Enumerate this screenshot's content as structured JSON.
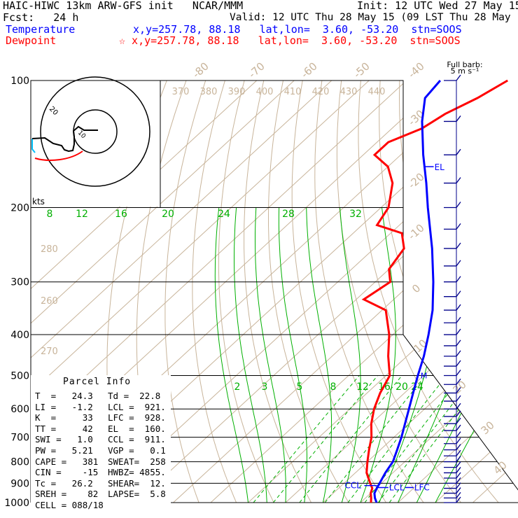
{
  "header": {
    "line1_left": "HAIC-HIWC 13km ARW-GFS init   NCAR/MMM",
    "line1_right": "Init: 12 UTC Wed 27 May 15",
    "line2_left": "Fcst:   24 h",
    "line2_right": "Valid: 12 UTC Thu 28 May 15 (09 LST Thu 28 May 15)",
    "temp_label": "Temperature",
    "temp_info": "x,y=257.78, 88.18   lat,lon=  3.60, -53.20  stn=SOOS",
    "dew_label": "Dewpoint",
    "dew_info": "☆ x,y=257.78, 88.18   lat,lon=  3.60, -53.20  stn=SOOS"
  },
  "colors": {
    "temperature": "#0000ff",
    "dewpoint": "#ff0000",
    "isotherm": "#c8b49a",
    "mixing_ratio": "#00b000",
    "barb": "#00008b",
    "hodo_low": "#00c0ff"
  },
  "chart_data": {
    "type": "line",
    "title": "",
    "pressure_labels": [
      "100",
      "200",
      "300",
      "400",
      "500",
      "600",
      "700",
      "800",
      "900",
      "1000"
    ],
    "isotherm_labels": [
      "-80",
      "-70",
      "-60",
      "-50",
      "-40",
      "-30",
      "-20",
      "-10",
      "0",
      "10",
      "20",
      "30",
      "40"
    ],
    "theta_labels": [
      "370",
      "380",
      "390",
      "400",
      "410",
      "420",
      "430",
      "440"
    ],
    "theta_left_labels": [
      "280",
      "260",
      "270"
    ],
    "mixing_upper_labels": [
      "8",
      "12",
      "16",
      "20",
      "24",
      "28",
      "32"
    ],
    "mixing_lower_labels": [
      "2",
      "3",
      "5",
      "8",
      "12",
      "16",
      "20",
      "24"
    ],
    "series": [
      {
        "name": "Temperature",
        "points": [
          [
            1000,
            24.3
          ],
          [
            975,
            22.5
          ],
          [
            950,
            21.0
          ],
          [
            925,
            20.2
          ],
          [
            900,
            19.5
          ],
          [
            850,
            18.0
          ],
          [
            800,
            16.8
          ],
          [
            750,
            14.5
          ],
          [
            700,
            12.0
          ],
          [
            650,
            9.0
          ],
          [
            600,
            5.8
          ],
          [
            550,
            2.3
          ],
          [
            500,
            -1.5
          ],
          [
            450,
            -5.5
          ],
          [
            400,
            -10.5
          ],
          [
            350,
            -16.5
          ],
          [
            300,
            -24.5
          ],
          [
            250,
            -34.5
          ],
          [
            200,
            -47.5
          ],
          [
            175,
            -55.0
          ],
          [
            150,
            -64.0
          ],
          [
            125,
            -74.0
          ],
          [
            110,
            -80.0
          ],
          [
            100,
            -81.0
          ]
        ]
      },
      {
        "name": "Dewpoint",
        "points": [
          [
            1000,
            22.8
          ],
          [
            975,
            21.5
          ],
          [
            950,
            20.0
          ],
          [
            925,
            19.0
          ],
          [
            900,
            17.0
          ],
          [
            850,
            13.0
          ],
          [
            800,
            10.0
          ],
          [
            750,
            7.0
          ],
          [
            700,
            4.0
          ],
          [
            650,
            0.0
          ],
          [
            600,
            -3.5
          ],
          [
            550,
            -6.5
          ],
          [
            500,
            -9.0
          ],
          [
            450,
            -15.0
          ],
          [
            400,
            -21.0
          ],
          [
            350,
            -29.0
          ],
          [
            330,
            -38.0
          ],
          [
            300,
            -36.0
          ],
          [
            280,
            -40.0
          ],
          [
            250,
            -42.0
          ],
          [
            230,
            -47.0
          ],
          [
            220,
            -56.0
          ],
          [
            200,
            -58.0
          ],
          [
            175,
            -64.0
          ],
          [
            160,
            -70.0
          ],
          [
            150,
            -77.0
          ],
          [
            140,
            -77.0
          ],
          [
            130,
            -72.0
          ],
          [
            120,
            -70.0
          ],
          [
            110,
            -66.0
          ],
          [
            100,
            -63.0
          ]
        ]
      }
    ],
    "levels": [
      {
        "label": "EL",
        "pressure": 160
      },
      {
        "label": "M",
        "pressure": 500
      },
      {
        "label": "CCL",
        "pressure": 911
      },
      {
        "label": "LCL",
        "pressure": 921
      },
      {
        "label": "LFC",
        "pressure": 928
      }
    ],
    "hodograph": {
      "rings_label": "kts",
      "ring_labels": [
        "20",
        "10"
      ]
    },
    "barb_caption_1": "Full barb:",
    "barb_caption_2": "5 m s⁻¹"
  },
  "parcel": {
    "title": "Parcel Info",
    "rows": [
      [
        "T  =   24.3",
        "Td =  22.8"
      ],
      [
        "LI =   -1.2",
        "LCL =  921."
      ],
      [
        "K  =     33",
        "LFC =  928."
      ],
      [
        "TT =     42",
        "EL  =  160."
      ],
      [
        "SWI =   1.0",
        "CCL =  911."
      ],
      [
        "PW =   5.21",
        "VGP =   0.1"
      ],
      [
        "CAPE =   381",
        "SWEAT=  258"
      ],
      [
        "CIN =    -15",
        "HWBZ= 4855."
      ],
      [
        "Tc =   26.2",
        "SHEAR=  12."
      ],
      [
        "SREH =    82",
        "LAPSE=  5.8"
      ],
      [
        "CELL = 088/18",
        ""
      ]
    ]
  }
}
